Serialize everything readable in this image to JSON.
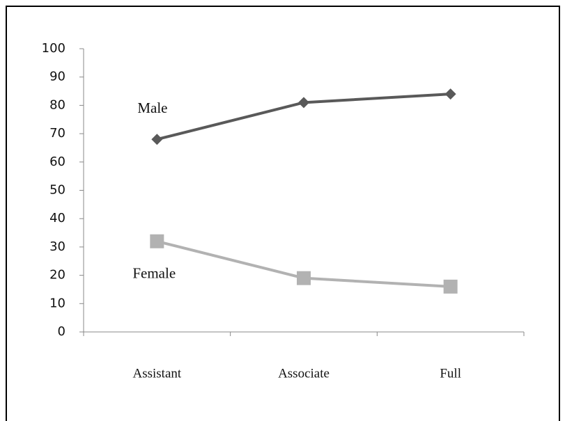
{
  "chart_data": {
    "type": "line",
    "categories": [
      "Assistant",
      "Associate",
      "Full"
    ],
    "series": [
      {
        "name": "Male",
        "color": "#595959",
        "marker": "diamond",
        "values": [
          68,
          81,
          84
        ]
      },
      {
        "name": "Female",
        "color": "#b2b2b2",
        "marker": "square",
        "values": [
          32,
          19,
          16
        ]
      }
    ],
    "ylim": [
      0,
      100
    ],
    "yticks": [
      0,
      10,
      20,
      30,
      40,
      50,
      60,
      70,
      80,
      90,
      100
    ],
    "grid": false
  }
}
